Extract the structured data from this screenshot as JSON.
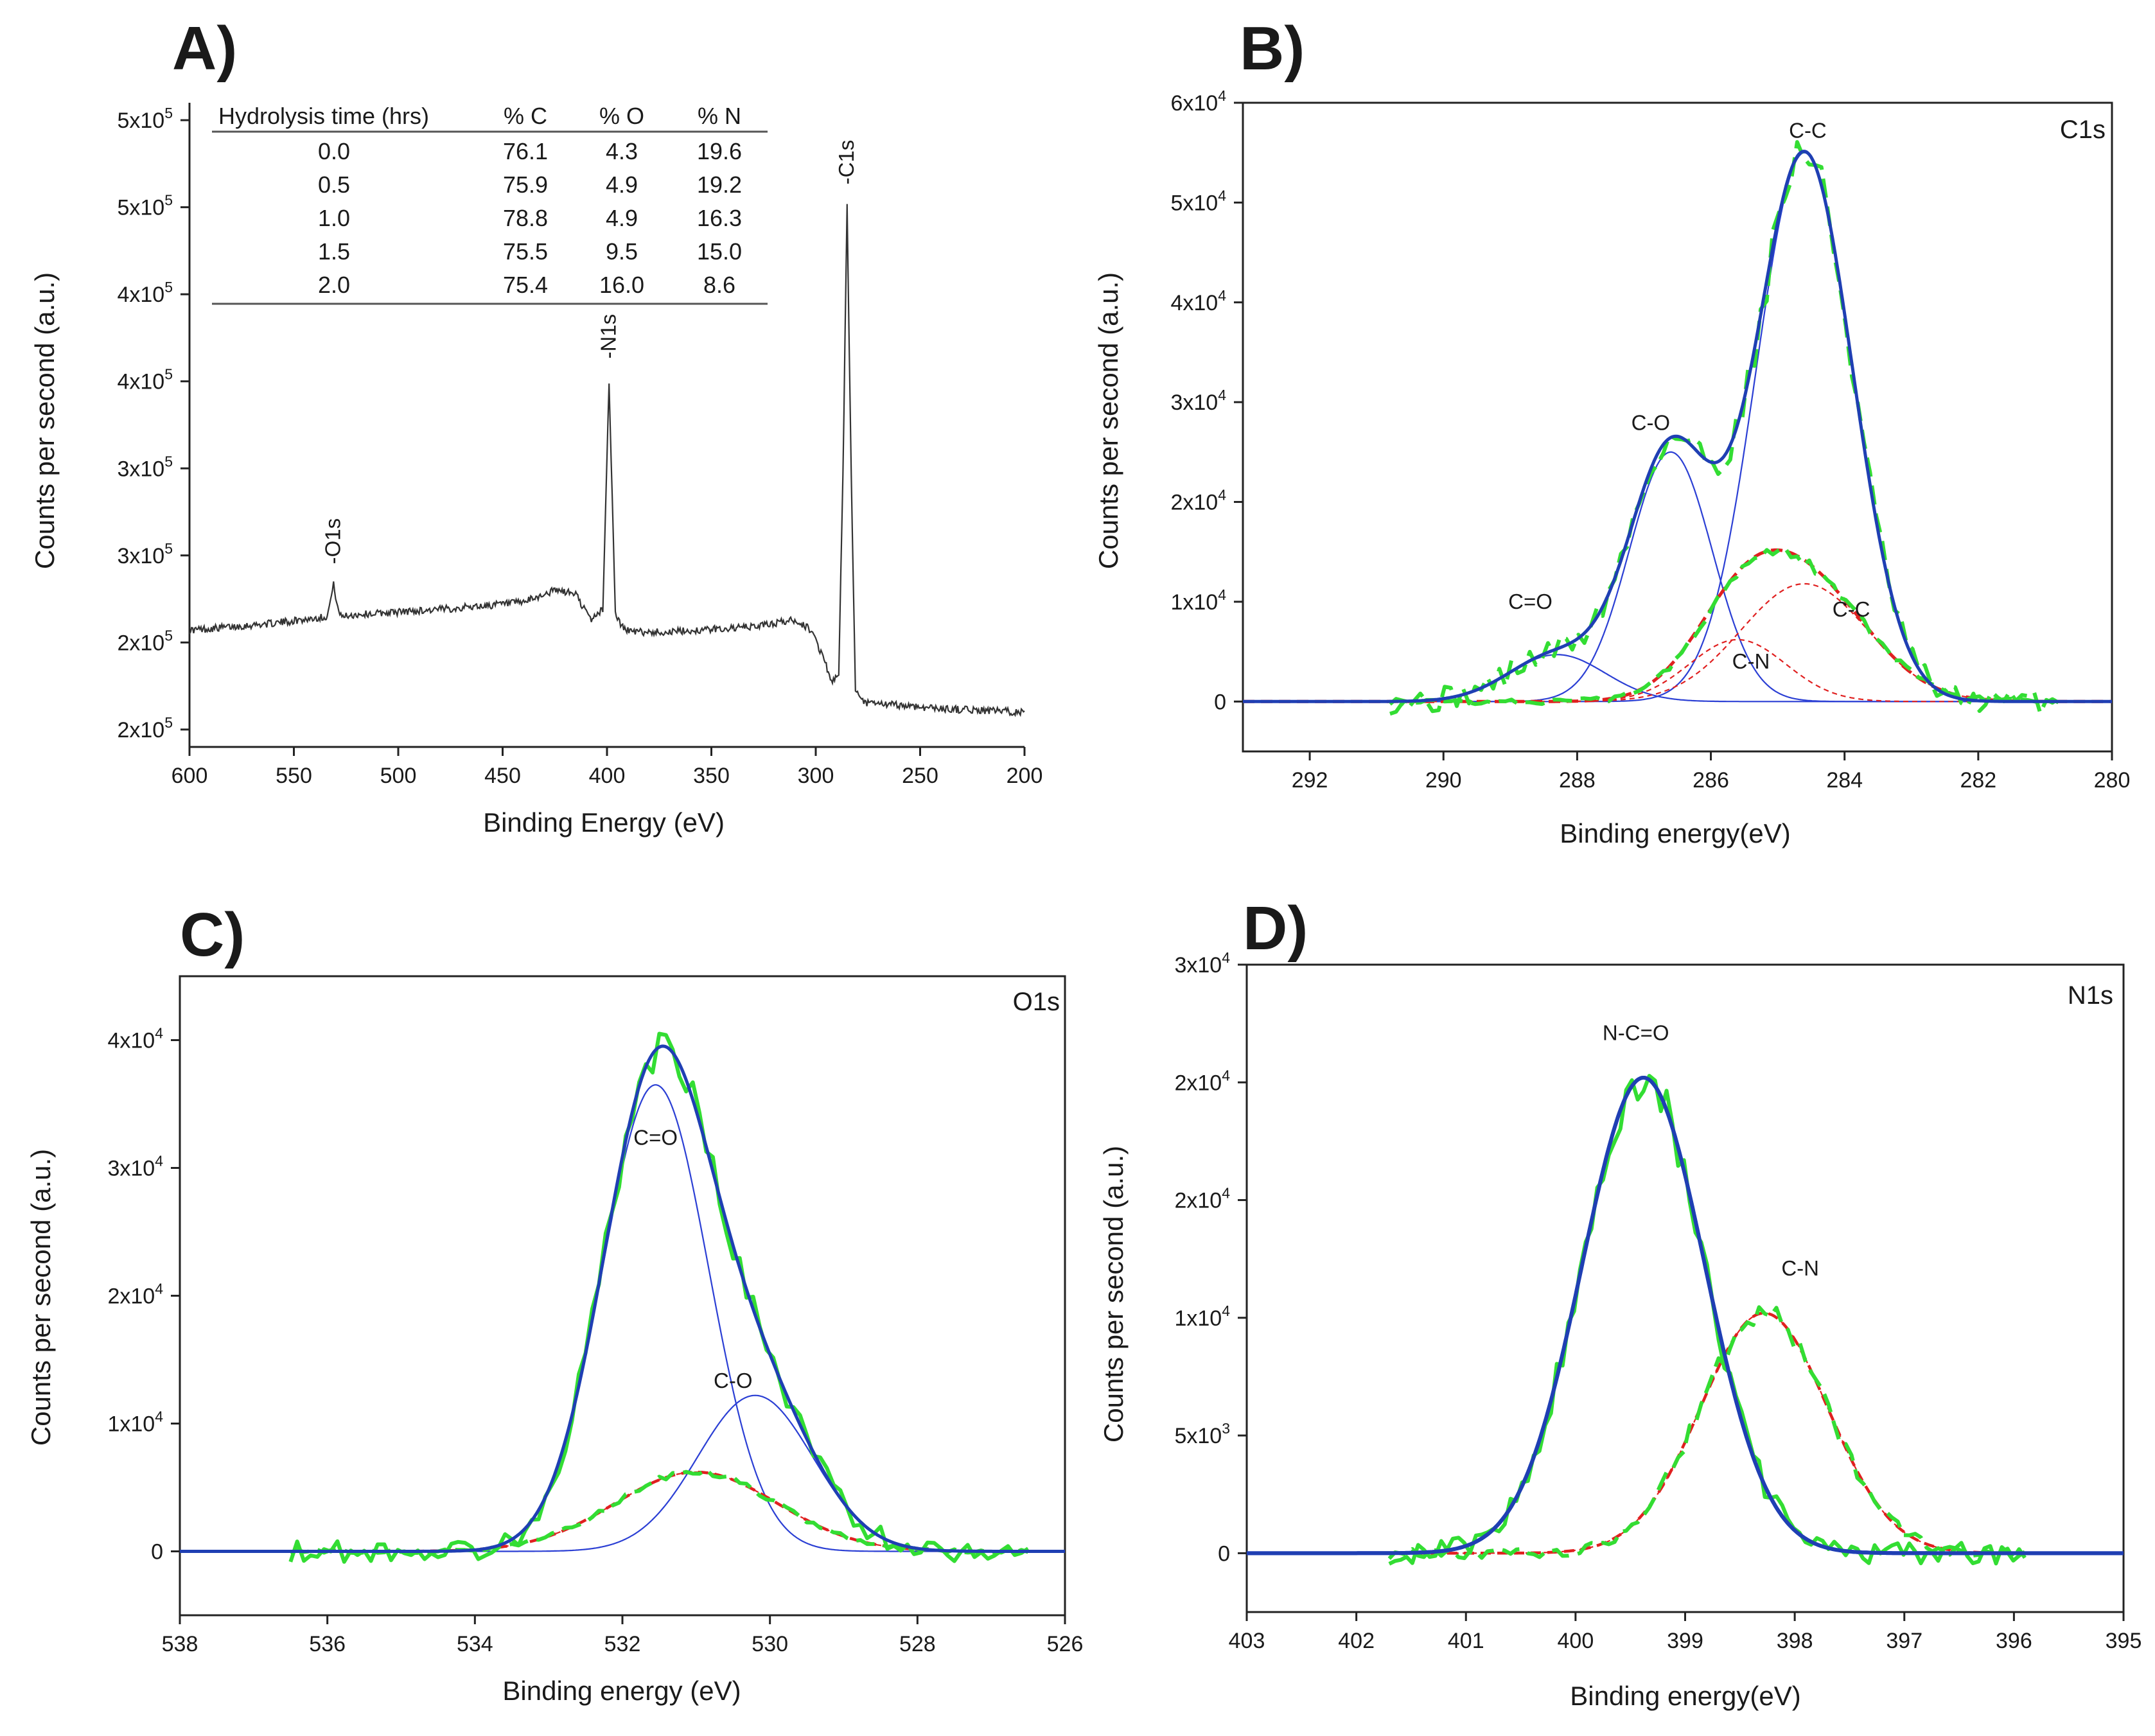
{
  "colors": {
    "survey": "#333333",
    "envelope": "#1f3fb3",
    "component": "#2b3fd4",
    "red_component": "#e02020",
    "raw_data": "#33dd33",
    "axis": "#222222"
  },
  "chart_data": [
    {
      "id": "A",
      "type": "line",
      "panel_label": "A)",
      "xlabel": "Binding Energy (eV)",
      "ylabel": "Counts per second (a.u.)",
      "xlim": [
        600,
        200
      ],
      "ylim": [
        145000.0,
        515000.0
      ],
      "x_ticks": [
        600,
        550,
        500,
        450,
        400,
        350,
        300,
        250,
        200
      ],
      "x_tick_labels": [
        "600",
        "550",
        "500",
        "450",
        "400",
        "350",
        "300",
        "250",
        "200"
      ],
      "y_ticks": [
        155000.0,
        205000.0,
        255000.0,
        305000.0,
        355000.0,
        405000.0,
        455000.0,
        505000.0
      ],
      "y_tick_labels": [
        "2x10",
        "2x10",
        "3x10",
        "3x10",
        "4x10",
        "4x10",
        "5x10",
        "5x10"
      ],
      "y_tick_exponent": "5",
      "baseline": {
        "x": [
          600,
          560,
          540,
          534,
          531,
          528,
          520,
          480,
          440,
          425,
          415,
          408,
          402,
          399,
          396,
          393,
          388,
          370,
          330,
          310,
          302,
          296,
          292,
          289,
          287,
          285,
          283,
          281,
          279,
          275,
          260,
          240,
          220,
          200
        ],
        "y": [
          212000,
          216000,
          219000,
          220000,
          238000,
          220000,
          221000,
          224000,
          228000,
          235000,
          233000,
          218000,
          224000,
          355000,
          222000,
          214000,
          211000,
          211000,
          214000,
          218000,
          212000,
          195000,
          182000,
          186000,
          300000,
          455000,
          300000,
          178000,
          172000,
          170000,
          169000,
          167000,
          166000,
          165000
        ]
      },
      "series": [
        {
          "name": "survey",
          "style": "thin-dark"
        }
      ],
      "peak_labels": [
        {
          "text": "-O1s",
          "x": 531,
          "y": 250000
        },
        {
          "text": "-N1s",
          "x": 399,
          "y": 368000
        },
        {
          "text": "-C1s",
          "x": 285,
          "y": 468000
        }
      ],
      "inset_table": {
        "columns": [
          "Hydrolysis time (hrs)",
          "% C",
          "% O",
          "% N"
        ],
        "rows": [
          [
            "0.0",
            "76.1",
            "4.3",
            "19.6"
          ],
          [
            "0.5",
            "75.9",
            "4.9",
            "19.2"
          ],
          [
            "1.0",
            "78.8",
            "4.9",
            "16.3"
          ],
          [
            "1.5",
            "75.5",
            "9.5",
            "15.0"
          ],
          [
            "2.0",
            "75.4",
            "16.0",
            "8.6"
          ]
        ]
      }
    },
    {
      "id": "B",
      "type": "line",
      "panel_label": "B)",
      "corner_label": "C1s",
      "xlabel": "Binding energy(eV)",
      "ylabel": "Counts per second (a.u.)",
      "xlim": [
        293,
        280
      ],
      "ylim": [
        -5000,
        60000
      ],
      "x_ticks": [
        292,
        290,
        288,
        286,
        284,
        282,
        280
      ],
      "x_tick_labels": [
        "292",
        "290",
        "288",
        "286",
        "284",
        "282",
        "280"
      ],
      "y_ticks": [
        0,
        10000,
        20000,
        30000,
        40000,
        50000,
        60000
      ],
      "y_tick_labels": [
        "0",
        "1x10",
        "2x10",
        "3x10",
        "4x10",
        "5x10",
        "6x10"
      ],
      "y_tick_exponent": "4",
      "data_xrange": [
        290.8,
        280.8
      ],
      "components": [
        {
          "name": "C-C",
          "center": 284.6,
          "amp": 55000,
          "sigma": 0.72,
          "style": "blue-thin"
        },
        {
          "name": "C-O",
          "center": 286.6,
          "amp": 25000,
          "sigma": 0.62,
          "style": "blue-thin"
        },
        {
          "name": "C=O",
          "center": 288.3,
          "amp": 4700,
          "sigma": 0.72,
          "style": "blue-thin"
        },
        {
          "name": "C-C",
          "center": 284.6,
          "amp": 11800,
          "sigma": 0.95,
          "style": "red-dash-thin"
        },
        {
          "name": "C-N",
          "center": 285.6,
          "amp": 6200,
          "sigma": 0.72,
          "style": "red-dash-thin"
        }
      ],
      "envelope_from": [
        0,
        1,
        2
      ],
      "red_envelope_from": [
        3,
        4
      ],
      "raw_from": [
        0,
        1,
        2
      ],
      "labels": [
        {
          "text": "C-C",
          "x": 284.55,
          "y": 56500
        },
        {
          "text": "C-O",
          "x": 286.9,
          "y": 27200
        },
        {
          "text": "C=O",
          "x": 288.7,
          "y": 9300
        },
        {
          "text": "C-C",
          "x": 283.9,
          "y": 8500
        },
        {
          "text": "C-N",
          "x": 285.4,
          "y": 3300
        }
      ]
    },
    {
      "id": "C",
      "type": "line",
      "panel_label": "C)",
      "corner_label": "O1s",
      "xlabel": "Binding energy (eV)",
      "ylabel": "Counts per second  (a.u.)",
      "xlim": [
        538,
        526
      ],
      "ylim": [
        -5000,
        45000
      ],
      "x_ticks": [
        538,
        536,
        534,
        532,
        530,
        528,
        526
      ],
      "x_tick_labels": [
        "538",
        "536",
        "534",
        "532",
        "530",
        "528",
        "526"
      ],
      "y_ticks": [
        0,
        10000,
        20000,
        30000,
        40000
      ],
      "y_tick_labels": [
        "0",
        "1x10",
        "2x10",
        "3x10",
        "4x10"
      ],
      "y_tick_exponent": "4",
      "data_xrange": [
        536.5,
        526.5
      ],
      "components": [
        {
          "name": "C=O",
          "center": 531.55,
          "amp": 36500,
          "sigma": 0.72,
          "style": "blue-thin"
        },
        {
          "name": "C-O",
          "center": 530.2,
          "amp": 12200,
          "sigma": 0.78,
          "style": "blue-thin"
        },
        {
          "name": "red",
          "center": 531.0,
          "amp": 6200,
          "sigma": 1.1,
          "style": "red-dash-thin"
        }
      ],
      "envelope_from": [
        0,
        1
      ],
      "red_envelope_from": [
        2
      ],
      "raw_from": [
        0,
        1
      ],
      "labels": [
        {
          "text": "C=O",
          "x": 531.55,
          "y": 31800
        },
        {
          "text": "C-O",
          "x": 530.5,
          "y": 12800
        }
      ]
    },
    {
      "id": "D",
      "type": "line",
      "panel_label": "D)",
      "corner_label": "N1s",
      "xlabel": "Binding energy(eV)",
      "ylabel": "Counts per second (a.u.)",
      "xlim": [
        403,
        395
      ],
      "ylim": [
        -2500,
        25000
      ],
      "x_ticks": [
        403,
        402,
        401,
        400,
        399,
        398,
        397,
        396,
        395
      ],
      "x_tick_labels": [
        "403",
        "402",
        "401",
        "400",
        "399",
        "398",
        "397",
        "396",
        "395"
      ],
      "y_ticks": [
        0,
        5000,
        10000,
        15000,
        20000,
        25000
      ],
      "y_tick_labels": [
        "0",
        "5x10",
        "1x10",
        "2x10",
        "2x10",
        "3x10"
      ],
      "y_tick_exponents": [
        "",
        "3",
        "4",
        "4",
        "4",
        "4"
      ],
      "data_xrange": [
        401.7,
        395.9
      ],
      "components": [
        {
          "name": "N-C=O",
          "center": 399.38,
          "amp": 20200,
          "sigma": 0.56,
          "style": "blue-thick"
        },
        {
          "name": "C-N",
          "center": 398.28,
          "amp": 10200,
          "sigma": 0.58,
          "style": "red-dash-thin"
        }
      ],
      "envelope_from": [
        0
      ],
      "red_envelope_from": [
        1
      ],
      "raw_from": [
        0
      ],
      "raw2_from": [
        1
      ],
      "labels": [
        {
          "text": "N-C=O",
          "x": 399.45,
          "y": 21800
        },
        {
          "text": "C-N",
          "x": 397.95,
          "y": 11800
        }
      ]
    }
  ]
}
